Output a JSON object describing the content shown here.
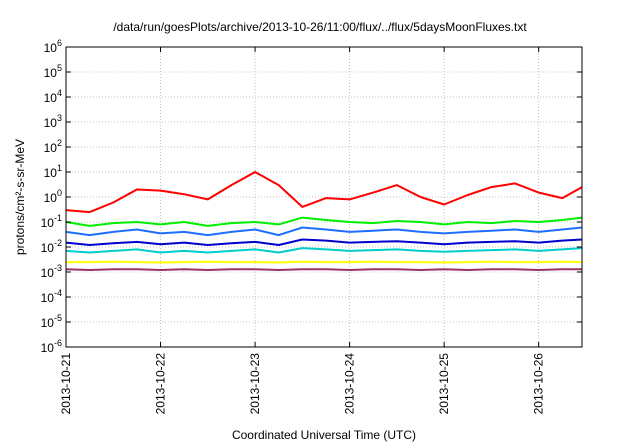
{
  "chart_data": {
    "type": "line",
    "title": "/data/run/goesPlots/archive/2013-10-26/11:00/flux/../flux/5daysMoonFluxes.txt",
    "xlabel": "Coordinated Universal Time (UTC)",
    "ylabel": "protons/cm²-s-sr-MeV",
    "yscale": "log",
    "ylim": [
      1e-06,
      1000000.0
    ],
    "ytick_exponents": [
      -6,
      -5,
      -4,
      -3,
      -2,
      -1,
      0,
      1,
      2,
      3,
      4,
      5,
      6
    ],
    "xlim": [
      "2013-10-21",
      "2013-10-26T11:00"
    ],
    "x_ticks": [
      "2013-10-21",
      "2013-10-22",
      "2013-10-23",
      "2013-10-24",
      "2013-10-25",
      "2013-10-26"
    ],
    "grid": true,
    "x": [
      "2013-10-21T00:00",
      "2013-10-21T06:00",
      "2013-10-21T12:00",
      "2013-10-21T18:00",
      "2013-10-22T00:00",
      "2013-10-22T06:00",
      "2013-10-22T12:00",
      "2013-10-22T18:00",
      "2013-10-23T00:00",
      "2013-10-23T06:00",
      "2013-10-23T12:00",
      "2013-10-23T18:00",
      "2013-10-24T00:00",
      "2013-10-24T06:00",
      "2013-10-24T12:00",
      "2013-10-24T18:00",
      "2013-10-25T00:00",
      "2013-10-25T06:00",
      "2013-10-25T12:00",
      "2013-10-25T18:00",
      "2013-10-26T00:00",
      "2013-10-26T06:00",
      "2013-10-26T11:00"
    ],
    "series": [
      {
        "color": "#ff0000",
        "values": [
          0.3,
          0.25,
          0.6,
          2.0,
          1.8,
          1.3,
          0.8,
          3.0,
          10.0,
          3.0,
          0.4,
          0.9,
          0.8,
          1.5,
          3.0,
          1.0,
          0.5,
          1.2,
          2.5,
          3.5,
          1.5,
          0.9,
          2.5
        ]
      },
      {
        "color": "#00ee00",
        "values": [
          0.1,
          0.07,
          0.09,
          0.1,
          0.08,
          0.1,
          0.07,
          0.09,
          0.1,
          0.08,
          0.15,
          0.12,
          0.1,
          0.09,
          0.11,
          0.1,
          0.08,
          0.1,
          0.09,
          0.11,
          0.1,
          0.12,
          0.15
        ]
      },
      {
        "color": "#1e6fff",
        "values": [
          0.04,
          0.03,
          0.04,
          0.05,
          0.035,
          0.04,
          0.03,
          0.04,
          0.05,
          0.03,
          0.06,
          0.05,
          0.04,
          0.045,
          0.05,
          0.04,
          0.035,
          0.04,
          0.045,
          0.05,
          0.04,
          0.05,
          0.06
        ]
      },
      {
        "color": "#0000cc",
        "values": [
          0.015,
          0.012,
          0.014,
          0.016,
          0.013,
          0.015,
          0.012,
          0.014,
          0.016,
          0.012,
          0.02,
          0.018,
          0.015,
          0.016,
          0.017,
          0.015,
          0.013,
          0.015,
          0.016,
          0.017,
          0.015,
          0.018,
          0.02
        ]
      },
      {
        "color": "#00cccc",
        "values": [
          0.007,
          0.006,
          0.007,
          0.008,
          0.006,
          0.007,
          0.006,
          0.007,
          0.008,
          0.006,
          0.009,
          0.008,
          0.007,
          0.0075,
          0.008,
          0.007,
          0.0065,
          0.007,
          0.0075,
          0.008,
          0.007,
          0.008,
          0.009
        ]
      },
      {
        "color": "#ffff00",
        "values": [
          0.0025,
          0.0025,
          0.0026,
          0.0025,
          0.0024,
          0.0025,
          0.0026,
          0.0025,
          0.0025,
          0.0024,
          0.0026,
          0.0025,
          0.0025,
          0.0026,
          0.0025,
          0.0025,
          0.0024,
          0.0025,
          0.0026,
          0.0025,
          0.0025,
          0.0026,
          0.0025
        ]
      },
      {
        "color": "#993366",
        "values": [
          0.0013,
          0.0012,
          0.0013,
          0.0013,
          0.0012,
          0.0013,
          0.0012,
          0.0013,
          0.0013,
          0.0012,
          0.0013,
          0.0013,
          0.0012,
          0.0013,
          0.0013,
          0.0012,
          0.0013,
          0.0012,
          0.0013,
          0.0013,
          0.0012,
          0.0013,
          0.0013
        ]
      }
    ]
  }
}
